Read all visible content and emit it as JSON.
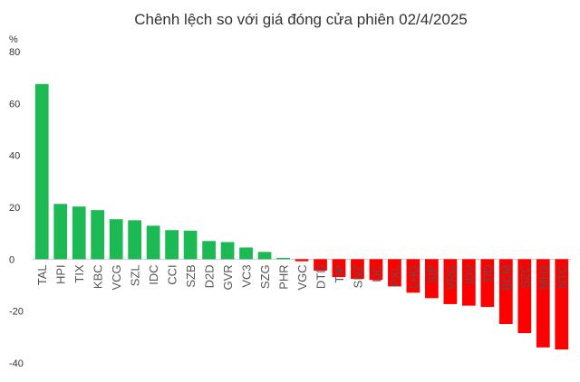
{
  "chart_data": {
    "type": "bar",
    "title": "Chênh lệch so với giá đóng cửa phiên 02/4/2025",
    "ylabel": "%",
    "xlabel": "",
    "ylim": [
      -40,
      80
    ],
    "yticks": [
      -40,
      -20,
      0,
      20,
      40,
      60,
      80
    ],
    "grid": false,
    "categories": [
      "TAL",
      "HPI",
      "TIX",
      "KBC",
      "VCG",
      "SZL",
      "IDC",
      "CCI",
      "SZB",
      "D2D",
      "GVR",
      "VC3",
      "SZG",
      "PHR",
      "VGC",
      "DTD",
      "TIP",
      "SNZ",
      "IJC",
      "PXL",
      "LHG",
      "SIP",
      "VRG",
      "IDV",
      "TID",
      "BCM",
      "SZC",
      "MH3",
      "NTC"
    ],
    "values": [
      67.5,
      21.3,
      20.3,
      18.9,
      15.4,
      15.0,
      12.9,
      11.2,
      11.0,
      7.0,
      6.6,
      4.5,
      2.8,
      0.5,
      -0.8,
      -4.4,
      -6.9,
      -7.6,
      -8.0,
      -10.5,
      -12.9,
      -15.0,
      -17.3,
      -17.9,
      -18.4,
      -25.0,
      -28.5,
      -34.0,
      -34.8
    ],
    "colors": {
      "positive": "#1db954",
      "negative": "#ff0000",
      "label": "#555555",
      "axis": "#cccccc"
    }
  }
}
